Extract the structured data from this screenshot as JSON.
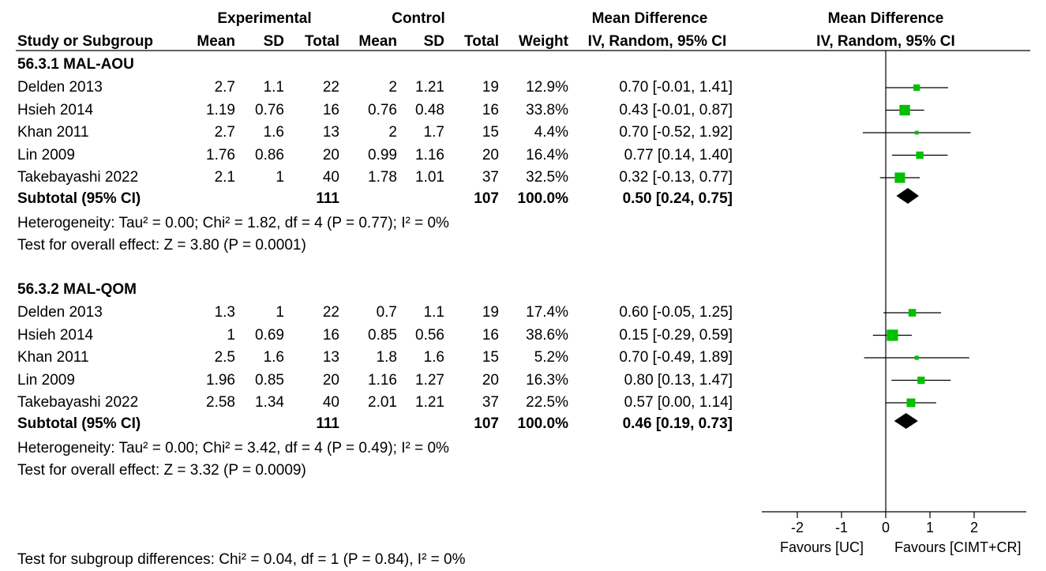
{
  "header": {
    "group_experimental": "Experimental",
    "group_control": "Control",
    "md_table": "Mean Difference",
    "md_plot": "Mean Difference",
    "columns": {
      "study": "Study or Subgroup",
      "exp_mean": "Mean",
      "exp_sd": "SD",
      "exp_total": "Total",
      "ctl_mean": "Mean",
      "ctl_sd": "SD",
      "ctl_total": "Total",
      "weight": "Weight",
      "ci_method": "IV, Random, 95% CI",
      "plot_method": "IV, Random, 95% CI"
    }
  },
  "groups": [
    {
      "title": "56.3.1 MAL-AOU",
      "studies": [
        {
          "name": "Delden 2013",
          "exp_mean": "2.7",
          "exp_sd": "1.1",
          "exp_total": "22",
          "ctl_mean": "2",
          "ctl_sd": "1.21",
          "ctl_total": "19",
          "weight": "12.9%",
          "ci": "0.70 [-0.01, 1.41]"
        },
        {
          "name": "Hsieh 2014",
          "exp_mean": "1.19",
          "exp_sd": "0.76",
          "exp_total": "16",
          "ctl_mean": "0.76",
          "ctl_sd": "0.48",
          "ctl_total": "16",
          "weight": "33.8%",
          "ci": "0.43 [-0.01, 0.87]"
        },
        {
          "name": "Khan 2011",
          "exp_mean": "2.7",
          "exp_sd": "1.6",
          "exp_total": "13",
          "ctl_mean": "2",
          "ctl_sd": "1.7",
          "ctl_total": "15",
          "weight": "4.4%",
          "ci": "0.70 [-0.52, 1.92]"
        },
        {
          "name": "Lin 2009",
          "exp_mean": "1.76",
          "exp_sd": "0.86",
          "exp_total": "20",
          "ctl_mean": "0.99",
          "ctl_sd": "1.16",
          "ctl_total": "20",
          "weight": "16.4%",
          "ci": "0.77 [0.14, 1.40]"
        },
        {
          "name": "Takebayashi 2022",
          "exp_mean": "2.1",
          "exp_sd": "1",
          "exp_total": "40",
          "ctl_mean": "1.78",
          "ctl_sd": "1.01",
          "ctl_total": "37",
          "weight": "32.5%",
          "ci": "0.32 [-0.13, 0.77]"
        }
      ],
      "subtotal": {
        "label": "Subtotal (95% CI)",
        "exp_total": "111",
        "ctl_total": "107",
        "weight": "100.0%",
        "ci": "0.50 [0.24, 0.75]"
      },
      "heterogeneity": "Heterogeneity: Tau² = 0.00; Chi² = 1.82, df = 4 (P = 0.77); I² = 0%",
      "overall": "Test for overall effect: Z = 3.80 (P = 0.0001)"
    },
    {
      "title": "56.3.2 MAL-QOM",
      "studies": [
        {
          "name": "Delden 2013",
          "exp_mean": "1.3",
          "exp_sd": "1",
          "exp_total": "22",
          "ctl_mean": "0.7",
          "ctl_sd": "1.1",
          "ctl_total": "19",
          "weight": "17.4%",
          "ci": "0.60 [-0.05, 1.25]"
        },
        {
          "name": "Hsieh 2014",
          "exp_mean": "1",
          "exp_sd": "0.69",
          "exp_total": "16",
          "ctl_mean": "0.85",
          "ctl_sd": "0.56",
          "ctl_total": "16",
          "weight": "38.6%",
          "ci": "0.15 [-0.29, 0.59]"
        },
        {
          "name": "Khan 2011",
          "exp_mean": "2.5",
          "exp_sd": "1.6",
          "exp_total": "13",
          "ctl_mean": "1.8",
          "ctl_sd": "1.6",
          "ctl_total": "15",
          "weight": "5.2%",
          "ci": "0.70 [-0.49, 1.89]"
        },
        {
          "name": "Lin 2009",
          "exp_mean": "1.96",
          "exp_sd": "0.85",
          "exp_total": "20",
          "ctl_mean": "1.16",
          "ctl_sd": "1.27",
          "ctl_total": "20",
          "weight": "16.3%",
          "ci": "0.80 [0.13, 1.47]"
        },
        {
          "name": "Takebayashi 2022",
          "exp_mean": "2.58",
          "exp_sd": "1.34",
          "exp_total": "40",
          "ctl_mean": "2.01",
          "ctl_sd": "1.21",
          "ctl_total": "37",
          "weight": "22.5%",
          "ci": "0.57 [0.00, 1.14]"
        }
      ],
      "subtotal": {
        "label": "Subtotal (95% CI)",
        "exp_total": "111",
        "ctl_total": "107",
        "weight": "100.0%",
        "ci": "0.46 [0.19, 0.73]"
      },
      "heterogeneity": "Heterogeneity: Tau² = 0.00; Chi² = 3.42, df = 4 (P = 0.49); I² = 0%",
      "overall": "Test for overall effect: Z = 3.32 (P = 0.0009)"
    }
  ],
  "subgroup_test": "Test for subgroup differences: Chi² = 0.04, df = 1 (P = 0.84), I² = 0%",
  "colors": {
    "study_marker": "#00c000",
    "diamond": "#000000",
    "line": "#000000"
  },
  "chart_data": {
    "type": "forest",
    "xlim": [
      -3,
      3
    ],
    "ticks": [
      "-2",
      "-1",
      "0",
      "1",
      "2"
    ],
    "tick_values": [
      -2,
      -1,
      0,
      1,
      2
    ],
    "favours_left": "Favours [UC]",
    "favours_right": "Favours [CIMT+CR]",
    "groups": [
      {
        "studies": [
          {
            "name": "Delden 2013",
            "md": 0.7,
            "lo": -0.01,
            "hi": 1.41,
            "weight": 12.9
          },
          {
            "name": "Hsieh 2014",
            "md": 0.43,
            "lo": -0.01,
            "hi": 0.87,
            "weight": 33.8
          },
          {
            "name": "Khan 2011",
            "md": 0.7,
            "lo": -0.52,
            "hi": 1.92,
            "weight": 4.4
          },
          {
            "name": "Lin 2009",
            "md": 0.77,
            "lo": 0.14,
            "hi": 1.4,
            "weight": 16.4
          },
          {
            "name": "Takebayashi 2022",
            "md": 0.32,
            "lo": -0.13,
            "hi": 0.77,
            "weight": 32.5
          }
        ],
        "subtotal": {
          "md": 0.5,
          "lo": 0.24,
          "hi": 0.75
        }
      },
      {
        "studies": [
          {
            "name": "Delden 2013",
            "md": 0.6,
            "lo": -0.05,
            "hi": 1.25,
            "weight": 17.4
          },
          {
            "name": "Hsieh 2014",
            "md": 0.15,
            "lo": -0.29,
            "hi": 0.59,
            "weight": 38.6
          },
          {
            "name": "Khan 2011",
            "md": 0.7,
            "lo": -0.49,
            "hi": 1.89,
            "weight": 5.2
          },
          {
            "name": "Lin 2009",
            "md": 0.8,
            "lo": 0.13,
            "hi": 1.47,
            "weight": 16.3
          },
          {
            "name": "Takebayashi 2022",
            "md": 0.57,
            "lo": 0.0,
            "hi": 1.14,
            "weight": 22.5
          }
        ],
        "subtotal": {
          "md": 0.46,
          "lo": 0.19,
          "hi": 0.73
        }
      }
    ]
  }
}
